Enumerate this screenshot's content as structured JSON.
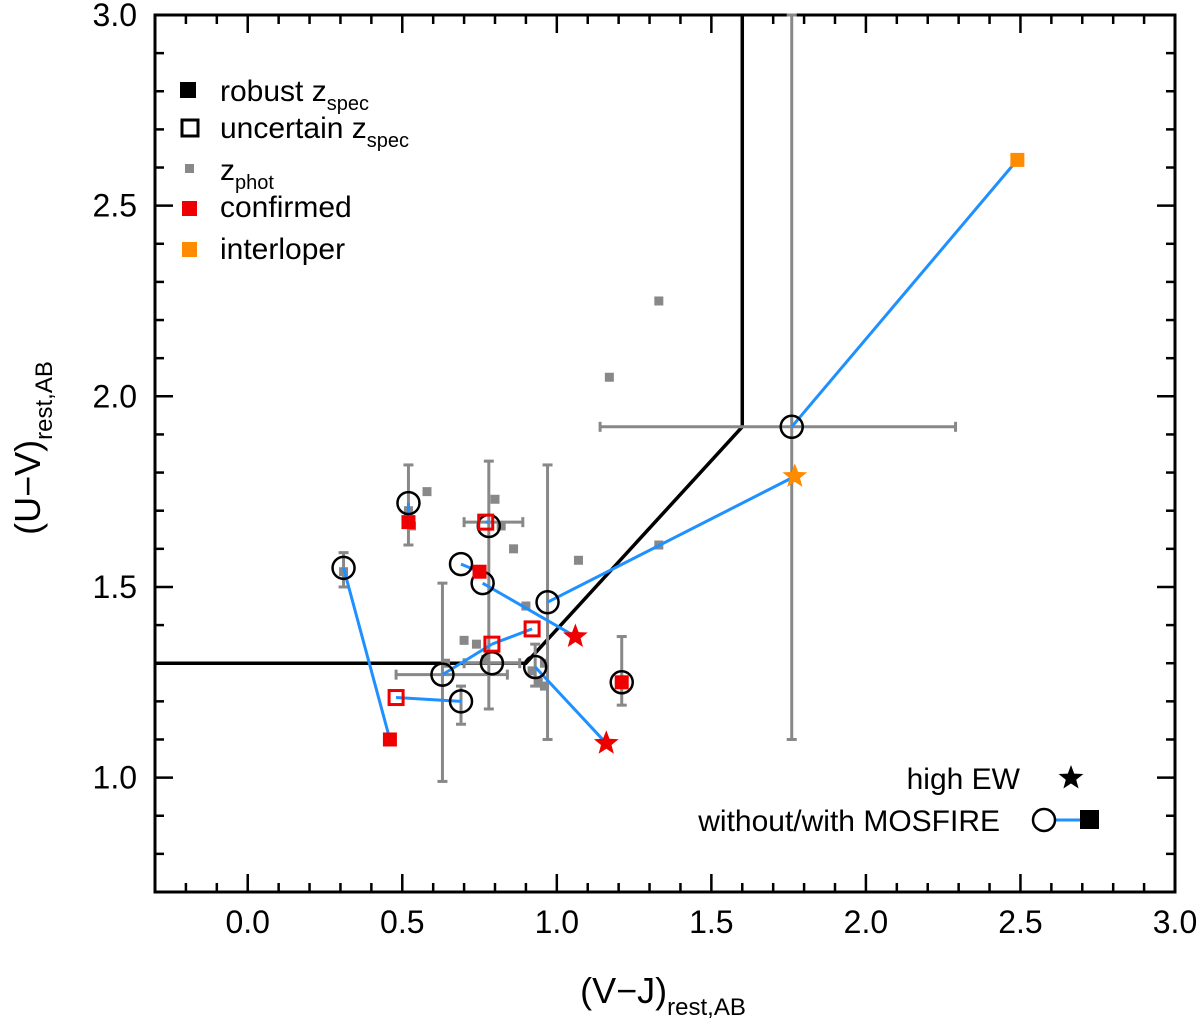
{
  "chart_data": {
    "type": "scatter",
    "xlabel": "(V−J)",
    "xlabel_sub": "rest,AB",
    "ylabel": "(U−V)",
    "ylabel_sub": "rest,AB",
    "xlim": [
      -0.3,
      3.0
    ],
    "ylim": [
      0.7,
      3.0
    ],
    "xticks": [
      "0.0",
      "0.5",
      "1.0",
      "1.5",
      "2.0",
      "2.5",
      "3.0"
    ],
    "yticks": [
      "1.0",
      "1.5",
      "2.0",
      "2.5",
      "3.0"
    ],
    "selection_boundary": [
      [
        -0.3,
        1.3
      ],
      [
        0.9,
        1.3
      ],
      [
        1.6,
        1.92
      ],
      [
        1.6,
        3.0
      ]
    ],
    "colors": {
      "confirmed": "#ee0000",
      "interloper": "#ff8c00",
      "zphot": "#888888",
      "link": "#1e90ff",
      "errorbar": "#888888",
      "boundary": "#000000"
    },
    "legend": {
      "items": [
        {
          "symbol": "filled-square",
          "color": "#000000",
          "label": "robust z",
          "sub": "spec"
        },
        {
          "symbol": "open-square",
          "color": "#000000",
          "label": "uncertain z",
          "sub": "spec"
        },
        {
          "symbol": "small-square",
          "color": "#888888",
          "label": "z",
          "sub": "phot"
        },
        {
          "symbol": "filled-square",
          "color": "#ee0000",
          "label": "confirmed",
          "sub": ""
        },
        {
          "symbol": "filled-square",
          "color": "#ff8c00",
          "label": "interloper",
          "sub": ""
        }
      ],
      "note_high_ew": "high EW",
      "note_mosfire": "without/with MOSFIRE",
      "position": "top-left"
    },
    "zphot_points": [
      [
        0.31,
        1.54
      ],
      [
        0.52,
        1.7
      ],
      [
        0.53,
        1.66
      ],
      [
        0.58,
        1.75
      ],
      [
        0.7,
        1.36
      ],
      [
        0.74,
        1.35
      ],
      [
        0.77,
        1.31
      ],
      [
        0.8,
        1.73
      ],
      [
        0.82,
        1.66
      ],
      [
        0.86,
        1.6
      ],
      [
        0.9,
        1.45
      ],
      [
        0.92,
        1.28
      ],
      [
        0.94,
        1.25
      ],
      [
        0.96,
        1.24
      ],
      [
        1.07,
        1.57
      ],
      [
        1.17,
        2.05
      ],
      [
        1.33,
        2.25
      ],
      [
        1.33,
        1.61
      ],
      [
        0.64,
        1.3
      ],
      [
        0.96,
        1.3
      ]
    ],
    "errorbars": [
      {
        "x": 0.31,
        "y": 1.55,
        "ylo": 1.5,
        "yhi": 1.59
      },
      {
        "x": 0.52,
        "y": 1.7,
        "ylo": 1.61,
        "yhi": 1.82
      },
      {
        "x": 0.63,
        "y": 1.27,
        "ylo": 0.99,
        "yhi": 1.51,
        "xlo": 0.48,
        "xhi": 0.84
      },
      {
        "x": 0.69,
        "y": 1.2,
        "ylo": 1.14,
        "yhi": 1.24
      },
      {
        "x": 0.78,
        "y": 1.3,
        "ylo": 1.18,
        "yhi": 1.83,
        "xlo": 0.7,
        "xhi": 0.88
      },
      {
        "x": 0.78,
        "y": 1.67,
        "xlo": 0.7,
        "xhi": 0.89
      },
      {
        "x": 0.97,
        "y": 1.46,
        "ylo": 1.1,
        "yhi": 1.82
      },
      {
        "x": 0.93,
        "y": 1.29,
        "ylo": 1.24,
        "yhi": 1.35
      },
      {
        "x": 1.21,
        "y": 1.24,
        "ylo": 1.19,
        "yhi": 1.37
      },
      {
        "x": 1.76,
        "y": 1.92,
        "ylo": 1.1,
        "yhi": 3.0,
        "xlo": 1.14,
        "xhi": 2.29
      }
    ],
    "links": [
      [
        [
          0.31,
          1.55
        ],
        [
          0.46,
          1.1
        ]
      ],
      [
        [
          0.69,
          1.2
        ],
        [
          0.48,
          1.21
        ]
      ],
      [
        [
          0.69,
          1.56
        ],
        [
          0.75,
          1.54
        ]
      ],
      [
        [
          0.76,
          1.51
        ],
        [
          1.06,
          1.37
        ]
      ],
      [
        [
          0.63,
          1.27
        ],
        [
          0.79,
          1.35
        ]
      ],
      [
        [
          0.79,
          1.35
        ],
        [
          0.92,
          1.39
        ]
      ],
      [
        [
          0.93,
          1.29
        ],
        [
          1.16,
          1.09
        ]
      ],
      [
        [
          0.97,
          1.46
        ],
        [
          1.77,
          1.79
        ]
      ],
      [
        [
          1.76,
          1.92
        ],
        [
          2.49,
          2.62
        ]
      ],
      [
        [
          0.52,
          1.72
        ],
        [
          0.52,
          1.67
        ]
      ],
      [
        [
          0.77,
          1.67
        ],
        [
          0.78,
          1.67
        ]
      ]
    ],
    "circles": [
      [
        0.31,
        1.55
      ],
      [
        0.52,
        1.72
      ],
      [
        0.69,
        1.56
      ],
      [
        0.76,
        1.51
      ],
      [
        0.78,
        1.66
      ],
      [
        0.97,
        1.46
      ],
      [
        0.63,
        1.27
      ],
      [
        0.79,
        1.3
      ],
      [
        0.93,
        1.29
      ],
      [
        0.69,
        1.2
      ],
      [
        1.21,
        1.25
      ],
      [
        1.76,
        1.92
      ]
    ],
    "filled_squares": [
      {
        "x": 0.52,
        "y": 1.67,
        "color": "#ee0000"
      },
      {
        "x": 0.75,
        "y": 1.54,
        "color": "#ee0000"
      },
      {
        "x": 0.46,
        "y": 1.1,
        "color": "#ee0000"
      },
      {
        "x": 1.21,
        "y": 1.25,
        "color": "#ee0000"
      },
      {
        "x": 2.49,
        "y": 2.62,
        "color": "#ff8c00"
      }
    ],
    "open_squares": [
      {
        "x": 0.77,
        "y": 1.67,
        "color": "#ee0000"
      },
      {
        "x": 0.79,
        "y": 1.35,
        "color": "#ee0000"
      },
      {
        "x": 0.92,
        "y": 1.39,
        "color": "#ee0000"
      },
      {
        "x": 0.48,
        "y": 1.21,
        "color": "#ee0000"
      }
    ],
    "stars": [
      {
        "x": 1.06,
        "y": 1.37,
        "color": "#ee0000"
      },
      {
        "x": 1.16,
        "y": 1.09,
        "color": "#ee0000"
      },
      {
        "x": 1.77,
        "y": 1.79,
        "color": "#ff8c00"
      }
    ]
  }
}
